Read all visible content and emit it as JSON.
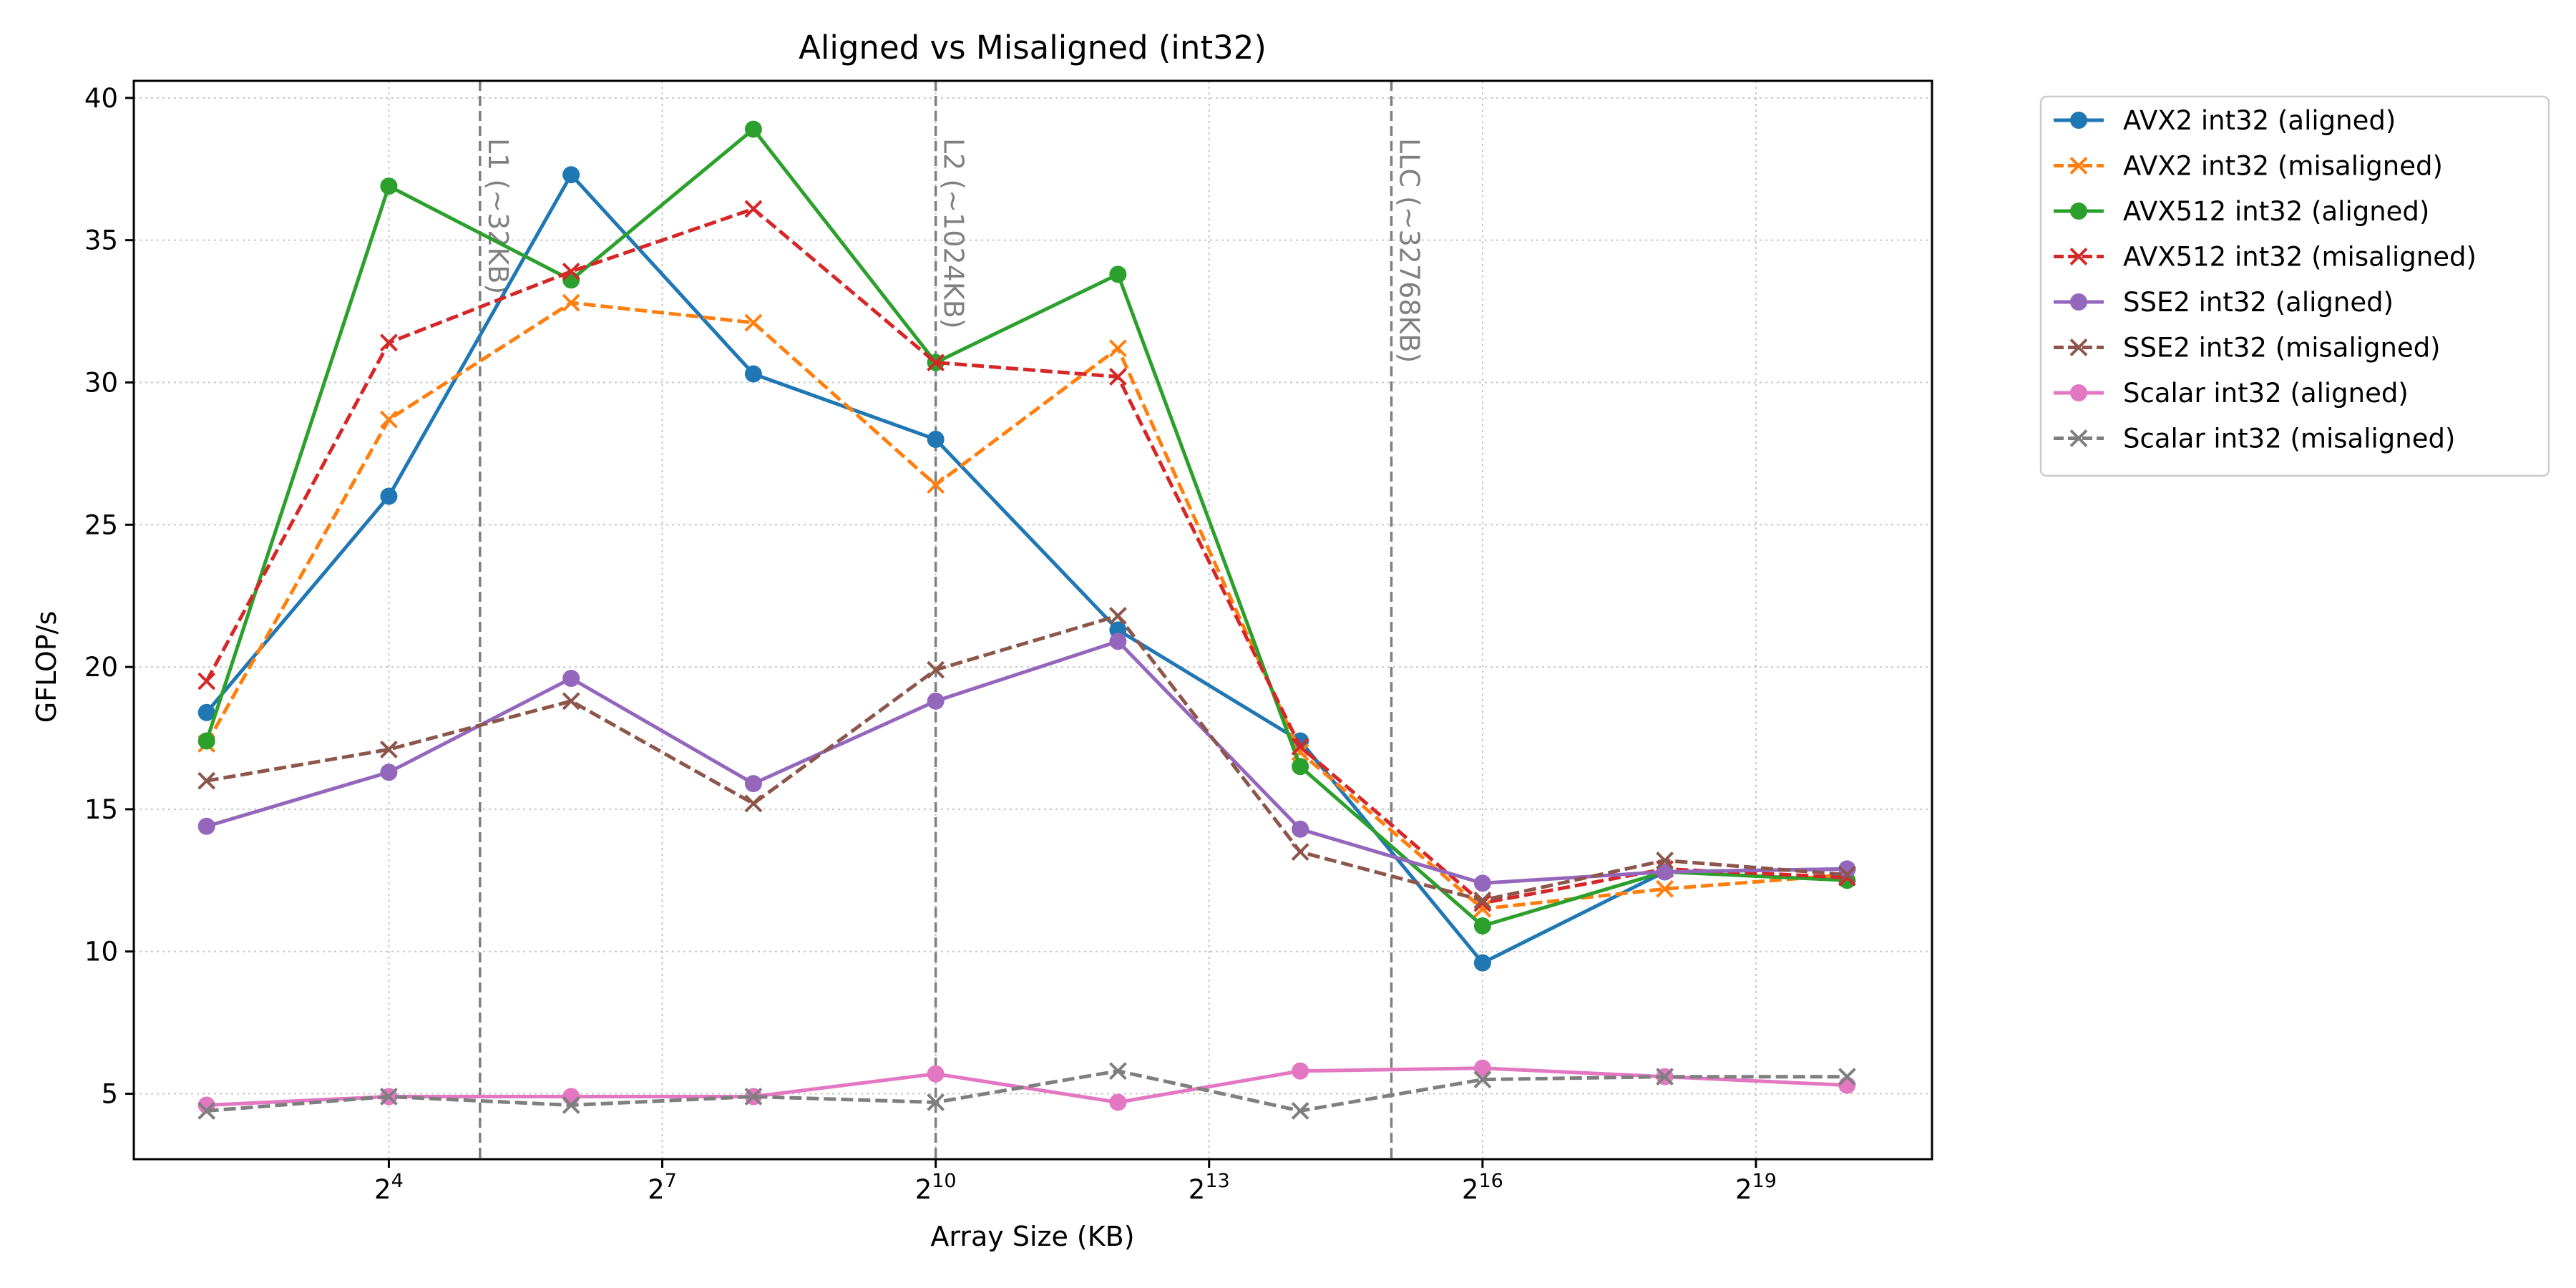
{
  "chart_data": {
    "type": "line",
    "title": "Aligned vs Misaligned (int32)",
    "xlabel": "Array Size (KB)",
    "ylabel": "GFLOP/s",
    "x_scale": "log2",
    "x": [
      4,
      16,
      64,
      256,
      1024,
      4096,
      16384,
      65536,
      262144,
      1048576
    ],
    "xlim": [
      2.3,
      2000000
    ],
    "ylim": [
      2.7,
      40.6
    ],
    "xticks": [
      {
        "value": 16,
        "base": "2",
        "exp": "4"
      },
      {
        "value": 128,
        "base": "2",
        "exp": "7"
      },
      {
        "value": 1024,
        "base": "2",
        "exp": "10"
      },
      {
        "value": 8192,
        "base": "2",
        "exp": "13"
      },
      {
        "value": 65536,
        "base": "2",
        "exp": "16"
      },
      {
        "value": 524288,
        "base": "2",
        "exp": "19"
      }
    ],
    "yticks": [
      5,
      10,
      15,
      20,
      25,
      30,
      35,
      40
    ],
    "ytick_labels": [
      "5",
      "10",
      "15",
      "20",
      "25",
      "30",
      "35",
      "40"
    ],
    "grid": true,
    "legend_position": "outside-top-right",
    "vlines": [
      {
        "x": 32,
        "label": "L1 (~32KB)",
        "color": "#808080"
      },
      {
        "x": 1024,
        "label": "L2 (~1024KB)",
        "color": "#808080"
      },
      {
        "x": 32768,
        "label": "LLC (~32768KB)",
        "color": "#808080"
      }
    ],
    "series": [
      {
        "name": "AVX2 int32 (aligned)",
        "color": "#1f77b4",
        "style": "solid",
        "marker": "circle",
        "values": [
          18.4,
          26.0,
          37.3,
          30.3,
          28.0,
          21.3,
          17.4,
          9.6,
          12.8,
          12.9
        ]
      },
      {
        "name": "AVX2 int32 (misaligned)",
        "color": "#ff7f0e",
        "style": "dashed",
        "marker": "x",
        "values": [
          17.3,
          28.7,
          32.8,
          32.1,
          26.4,
          31.2,
          17.0,
          11.5,
          12.2,
          12.7
        ]
      },
      {
        "name": "AVX512 int32 (aligned)",
        "color": "#2ca02c",
        "style": "solid",
        "marker": "circle",
        "values": [
          17.4,
          36.9,
          33.6,
          38.9,
          30.7,
          33.8,
          16.5,
          10.9,
          12.8,
          12.5
        ]
      },
      {
        "name": "AVX512 int32 (misaligned)",
        "color": "#d62728",
        "style": "dashed",
        "marker": "x",
        "values": [
          19.5,
          31.4,
          33.9,
          36.1,
          30.7,
          30.2,
          17.2,
          11.7,
          12.9,
          12.6
        ]
      },
      {
        "name": "SSE2 int32 (aligned)",
        "color": "#9467bd",
        "style": "solid",
        "marker": "circle",
        "values": [
          14.4,
          16.3,
          19.6,
          15.9,
          18.8,
          20.9,
          14.3,
          12.4,
          12.8,
          12.9
        ]
      },
      {
        "name": "SSE2 int32 (misaligned)",
        "color": "#8c564b",
        "style": "dashed",
        "marker": "x",
        "values": [
          16.0,
          17.1,
          18.8,
          15.2,
          19.9,
          21.8,
          13.5,
          11.8,
          13.2,
          12.7
        ]
      },
      {
        "name": "Scalar int32 (aligned)",
        "color": "#e377c2",
        "style": "solid",
        "marker": "circle",
        "values": [
          4.6,
          4.9,
          4.9,
          4.9,
          5.7,
          4.7,
          5.8,
          5.9,
          5.6,
          5.3
        ]
      },
      {
        "name": "Scalar int32 (misaligned)",
        "color": "#7f7f7f",
        "style": "dashed",
        "marker": "x",
        "values": [
          4.4,
          4.9,
          4.6,
          4.9,
          4.7,
          5.8,
          4.4,
          5.5,
          5.6,
          5.6
        ]
      }
    ]
  }
}
